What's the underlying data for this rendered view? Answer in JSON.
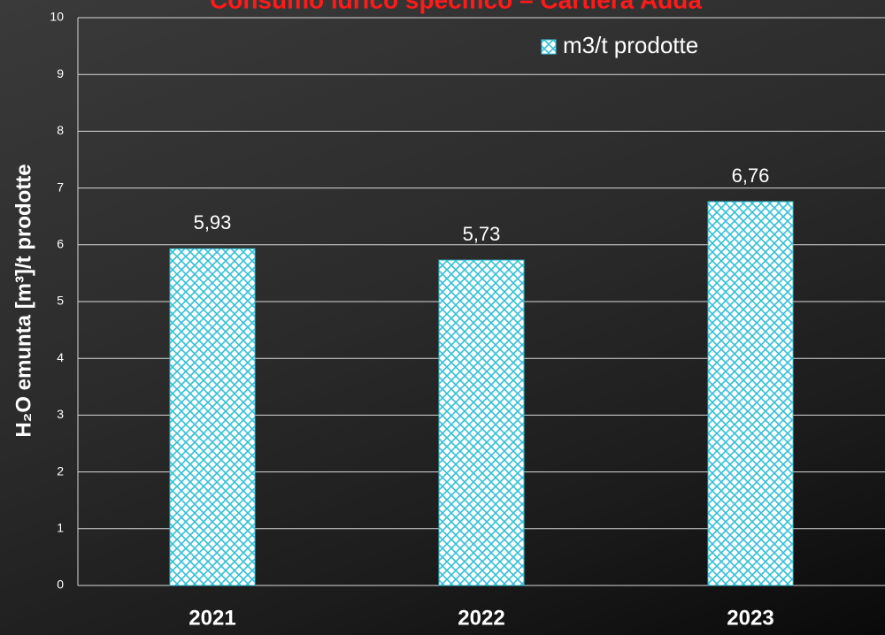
{
  "chart_data": {
    "type": "bar",
    "title": "Consumo idrico specifico – Cartiera Adda",
    "y_label": "H₂O emunta [m³]/t prodotte",
    "categories": [
      "2021",
      "2022",
      "2023"
    ],
    "series": [
      {
        "name": "m3/t prodotte",
        "color": "#33bfd6",
        "values": [
          5.93,
          5.73,
          6.76
        ],
        "value_labels": [
          "5,93",
          "5,73",
          "6,76"
        ]
      }
    ],
    "ylim": [
      0,
      10
    ],
    "yticks": [
      0,
      1,
      2,
      3,
      4,
      5,
      6,
      7,
      8,
      9,
      10
    ],
    "grid": true,
    "legend": "top-right"
  }
}
